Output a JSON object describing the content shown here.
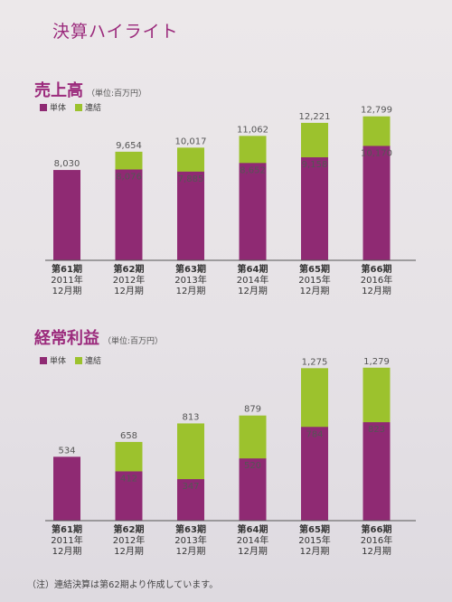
{
  "page_title": "決算ハイライト",
  "colors": {
    "standalone": "#8f2a73",
    "consolidated": "#9cc22d",
    "accent": "#9b2a7c"
  },
  "legend": {
    "standalone": "単体",
    "consolidated": "連結"
  },
  "note": "（注）連結決算は第62期より作成しています。",
  "chart_data": [
    {
      "type": "bar",
      "title": "売上高",
      "unit": "（単位:百万円）",
      "categories": [
        [
          "第61期",
          "2011年",
          "12月期"
        ],
        [
          "第62期",
          "2012年",
          "12月期"
        ],
        [
          "第63期",
          "2013年",
          "12月期"
        ],
        [
          "第64期",
          "2014年",
          "12月期"
        ],
        [
          "第65期",
          "2015年",
          "12月期"
        ],
        [
          "第66期",
          "2016年",
          "12月期"
        ]
      ],
      "series": [
        {
          "name": "単体",
          "values": [
            8030,
            8076,
            7885,
            8652,
            9158,
            10170
          ],
          "labels": [
            "8,030",
            "8,076",
            "7,885",
            "8,652",
            "9,158",
            "10,170"
          ]
        },
        {
          "name": "連結",
          "values": [
            null,
            9654,
            10017,
            11062,
            12221,
            12799
          ],
          "labels": [
            "",
            "9,654",
            "10,017",
            "11,062",
            "12,221",
            "12,799"
          ]
        }
      ],
      "ylim": [
        0,
        13500
      ]
    },
    {
      "type": "bar",
      "title": "経常利益",
      "unit": "（単位:百万円）",
      "categories": [
        [
          "第61期",
          "2011年",
          "12月期"
        ],
        [
          "第62期",
          "2012年",
          "12月期"
        ],
        [
          "第63期",
          "2013年",
          "12月期"
        ],
        [
          "第64期",
          "2014年",
          "12月期"
        ],
        [
          "第65期",
          "2015年",
          "12月期"
        ],
        [
          "第66期",
          "2016年",
          "12月期"
        ]
      ],
      "series": [
        {
          "name": "単体",
          "values": [
            534,
            412,
            347,
            520,
            784,
            823
          ],
          "labels": [
            "534",
            "412",
            "347",
            "520",
            "784",
            "823"
          ]
        },
        {
          "name": "連結",
          "values": [
            null,
            658,
            813,
            879,
            1275,
            1279
          ],
          "labels": [
            "",
            "658",
            "813",
            "879",
            "1,275",
            "1,279"
          ]
        }
      ],
      "ylim": [
        0,
        1300
      ]
    }
  ]
}
